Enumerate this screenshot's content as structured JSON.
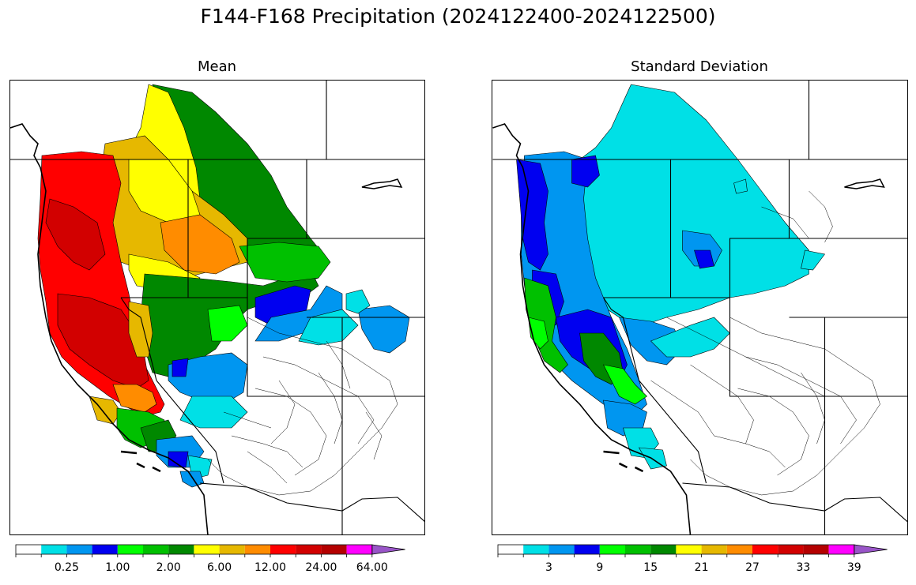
{
  "figure_title": "F144-F168 Precipitation (2024122400-2024122500)",
  "chart_data": [
    {
      "type": "heatmap",
      "title": "Mean",
      "levels": [
        0,
        0.1,
        0.25,
        0.5,
        1.0,
        1.5,
        2.0,
        4.0,
        6.0,
        8.0,
        12.0,
        16.0,
        24.0,
        32.0,
        64.0,
        96.0
      ],
      "tick_labels": [
        "0.25",
        "1.00",
        "2.00",
        "6.00",
        "12.00",
        "24.00",
        "64.00"
      ],
      "tick_bin_index": [
        2,
        4,
        6,
        8,
        10,
        12,
        14
      ],
      "extend": "max"
    },
    {
      "type": "heatmap",
      "title": "Standard Deviation",
      "levels": [
        0,
        2,
        3,
        6,
        9,
        12,
        15,
        18,
        21,
        24,
        27,
        30,
        33,
        36,
        39,
        42
      ],
      "tick_labels": [
        "3",
        "9",
        "15",
        "21",
        "27",
        "33",
        "39"
      ],
      "tick_bin_index": [
        2,
        4,
        6,
        8,
        10,
        12,
        14
      ],
      "extend": "max"
    }
  ],
  "colormap": [
    "#ffffff",
    "#00e0e6",
    "#0096f0",
    "#0000f0",
    "#00ff00",
    "#00c000",
    "#008800",
    "#ffff00",
    "#e6b800",
    "#ff8c00",
    "#ff0000",
    "#d20000",
    "#b40000",
    "#ff00ff",
    "#9955c8"
  ]
}
